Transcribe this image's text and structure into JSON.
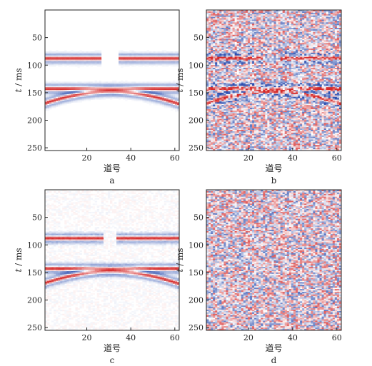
{
  "chart_data": [
    {
      "type": "heatmap",
      "caption": "a",
      "xlabel": "道号",
      "ylabel_var": "t",
      "ylabel_unit": " / ms",
      "xlim": [
        1,
        62
      ],
      "ylim": [
        0,
        255
      ],
      "y_inverted": true,
      "xticks": [
        20,
        40,
        60
      ],
      "yticks": [
        50,
        100,
        150,
        200,
        250
      ],
      "colormap": [
        "#2c4fb0",
        "#ffffff",
        "#d52a2a"
      ],
      "noise_level": 0.02,
      "events": [
        {
          "kind": "flat",
          "t_ms": 88,
          "trace_gap": [
            27,
            34
          ]
        },
        {
          "kind": "flat",
          "t_ms": 143
        },
        {
          "kind": "hyperbola",
          "apex_trace": 31,
          "apex_t_ms": 148,
          "edge_t_ms": 170
        }
      ]
    },
    {
      "type": "heatmap",
      "caption": "b",
      "xlabel": "道号",
      "ylabel_var": "t",
      "ylabel_unit": " / ms",
      "xlim": [
        1,
        62
      ],
      "ylim": [
        0,
        255
      ],
      "y_inverted": true,
      "xticks": [
        20,
        40,
        60
      ],
      "yticks": [
        50,
        100,
        150,
        200,
        250
      ],
      "colormap": [
        "#2c4fb0",
        "#ffffff",
        "#d52a2a"
      ],
      "noise_level": 0.55,
      "events": [
        {
          "kind": "flat",
          "t_ms": 88,
          "trace_gap": [
            27,
            34
          ]
        },
        {
          "kind": "flat",
          "t_ms": 143
        },
        {
          "kind": "hyperbola",
          "apex_trace": 31,
          "apex_t_ms": 148,
          "edge_t_ms": 170
        }
      ]
    },
    {
      "type": "heatmap",
      "caption": "c",
      "xlabel": "道号",
      "ylabel_var": "t",
      "ylabel_unit": " / ms",
      "xlim": [
        1,
        62
      ],
      "ylim": [
        0,
        255
      ],
      "y_inverted": true,
      "xticks": [
        20,
        40,
        60
      ],
      "yticks": [
        50,
        100,
        150,
        200,
        250
      ],
      "colormap": [
        "#2c4fb0",
        "#ffffff",
        "#d52a2a"
      ],
      "noise_level": 0.05,
      "events": [
        {
          "kind": "flat",
          "t_ms": 88,
          "trace_gap": [
            28,
            33
          ]
        },
        {
          "kind": "flat",
          "t_ms": 143
        },
        {
          "kind": "hyperbola",
          "apex_trace": 31,
          "apex_t_ms": 148,
          "edge_t_ms": 170
        }
      ]
    },
    {
      "type": "heatmap",
      "caption": "d",
      "xlabel": "道号",
      "ylabel_var": "t",
      "ylabel_unit": " / ms",
      "xlim": [
        1,
        62
      ],
      "ylim": [
        0,
        255
      ],
      "y_inverted": true,
      "xticks": [
        20,
        40,
        60
      ],
      "yticks": [
        50,
        100,
        150,
        200,
        250
      ],
      "colormap": [
        "#2c4fb0",
        "#ffffff",
        "#d52a2a"
      ],
      "noise_level": 0.55,
      "events": []
    }
  ]
}
